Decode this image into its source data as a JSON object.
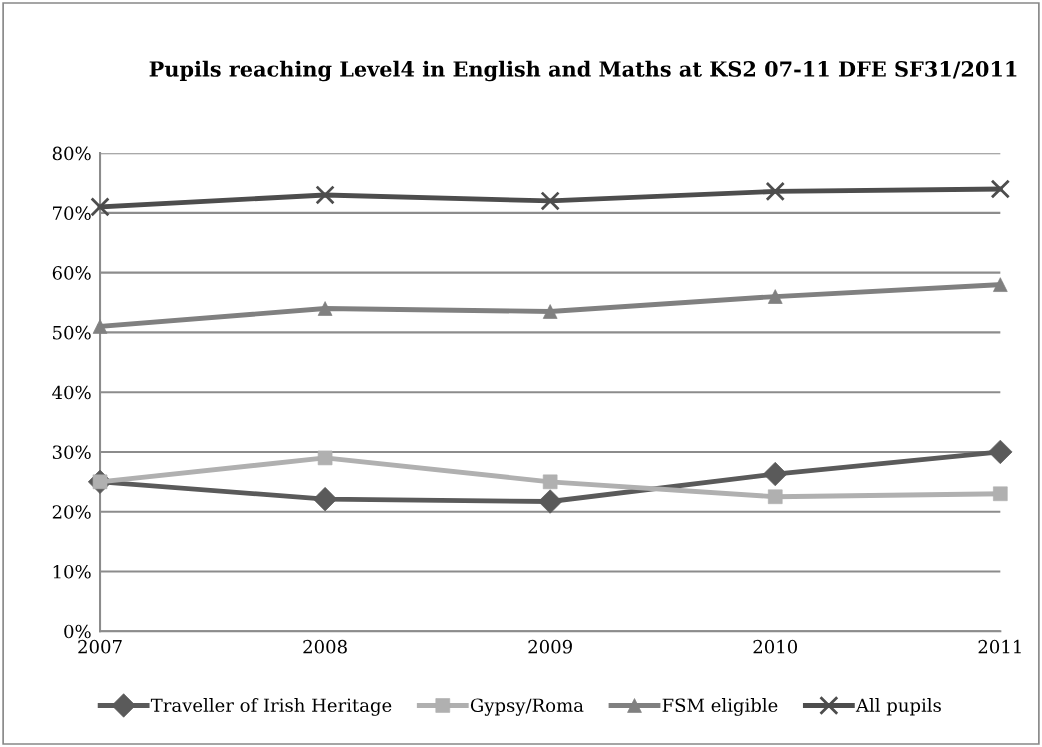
{
  "chart_data": {
    "type": "line",
    "title": "Pupils reaching Level4 in English and Maths at KS2 07-11 DFE SF31/2011",
    "categories": [
      "2007",
      "2008",
      "2009",
      "2010",
      "2011"
    ],
    "series": [
      {
        "name": "Traveller of Irish Heritage",
        "color": "#5a5a5a",
        "marker": "diamond",
        "values": [
          25,
          22.1,
          21.7,
          26.3,
          30
        ]
      },
      {
        "name": "Gypsy/Roma",
        "color": "#b0b0b0",
        "marker": "square",
        "values": [
          25,
          29,
          25,
          22.5,
          23
        ]
      },
      {
        "name": "FSM eligible",
        "color": "#808080",
        "marker": "triangle",
        "values": [
          51,
          54,
          53.5,
          56,
          58
        ]
      },
      {
        "name": "All pupils",
        "color": "#4d4d4d",
        "marker": "cross",
        "values": [
          71,
          73,
          72,
          73.6,
          74
        ]
      }
    ],
    "ylim": [
      0,
      80
    ],
    "yticks": [
      {
        "value": 0,
        "label": "0%"
      },
      {
        "value": 10,
        "label": "10%"
      },
      {
        "value": 20,
        "label": "20%"
      },
      {
        "value": 30,
        "label": "30%"
      },
      {
        "value": 40,
        "label": "40%"
      },
      {
        "value": 50,
        "label": "50%"
      },
      {
        "value": 60,
        "label": "60%"
      },
      {
        "value": 70,
        "label": "70%"
      },
      {
        "value": 80,
        "label": "80%"
      }
    ],
    "grid": "y",
    "legend": "bottom",
    "line_style": "solid"
  }
}
